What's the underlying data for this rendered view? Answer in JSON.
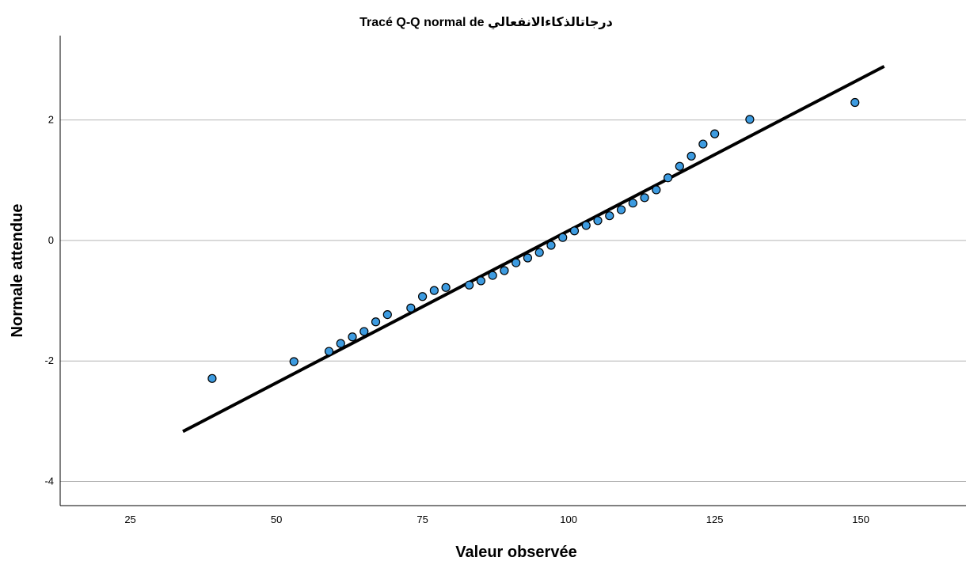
{
  "chart_data": {
    "type": "scatter",
    "title": "Tracé Q-Q normal de درجاتالذكاءالانفعالي",
    "xlabel": "Valeur observée",
    "ylabel": "Normale attendue",
    "xlim": [
      13,
      168
    ],
    "ylim": [
      -4.4,
      3.4
    ],
    "x_ticks": [
      25,
      50,
      75,
      100,
      125,
      150
    ],
    "x_tick_labels": [
      "25",
      "50",
      "75",
      "100",
      "125",
      "150"
    ],
    "y_ticks": [
      -4,
      -2,
      0,
      2
    ],
    "y_tick_labels": [
      "-4",
      "-2",
      "0",
      "2"
    ],
    "grid": "horizontal",
    "legend": "none",
    "point_color": "#3d9be0",
    "line_color": "#000000",
    "reference_line": {
      "x": [
        34,
        154
      ],
      "y": [
        -3.17,
        2.89
      ]
    },
    "points": {
      "x": [
        39,
        53,
        59,
        61,
        63,
        65,
        67,
        69,
        73,
        75,
        77,
        79,
        83,
        85,
        87,
        89,
        91,
        93,
        95,
        97,
        99,
        101,
        103,
        105,
        107,
        109,
        111,
        113,
        115,
        117,
        119,
        121,
        123,
        125,
        131,
        149
      ],
      "y": [
        -2.29,
        -2.01,
        -1.84,
        -1.71,
        -1.6,
        -1.51,
        -1.35,
        -1.23,
        -1.12,
        -0.93,
        -0.83,
        -0.78,
        -0.74,
        -0.67,
        -0.58,
        -0.5,
        -0.37,
        -0.29,
        -0.2,
        -0.08,
        0.05,
        0.16,
        0.25,
        0.33,
        0.41,
        0.51,
        0.62,
        0.71,
        0.84,
        1.04,
        1.23,
        1.4,
        1.6,
        1.77,
        2.01,
        2.29
      ]
    }
  }
}
